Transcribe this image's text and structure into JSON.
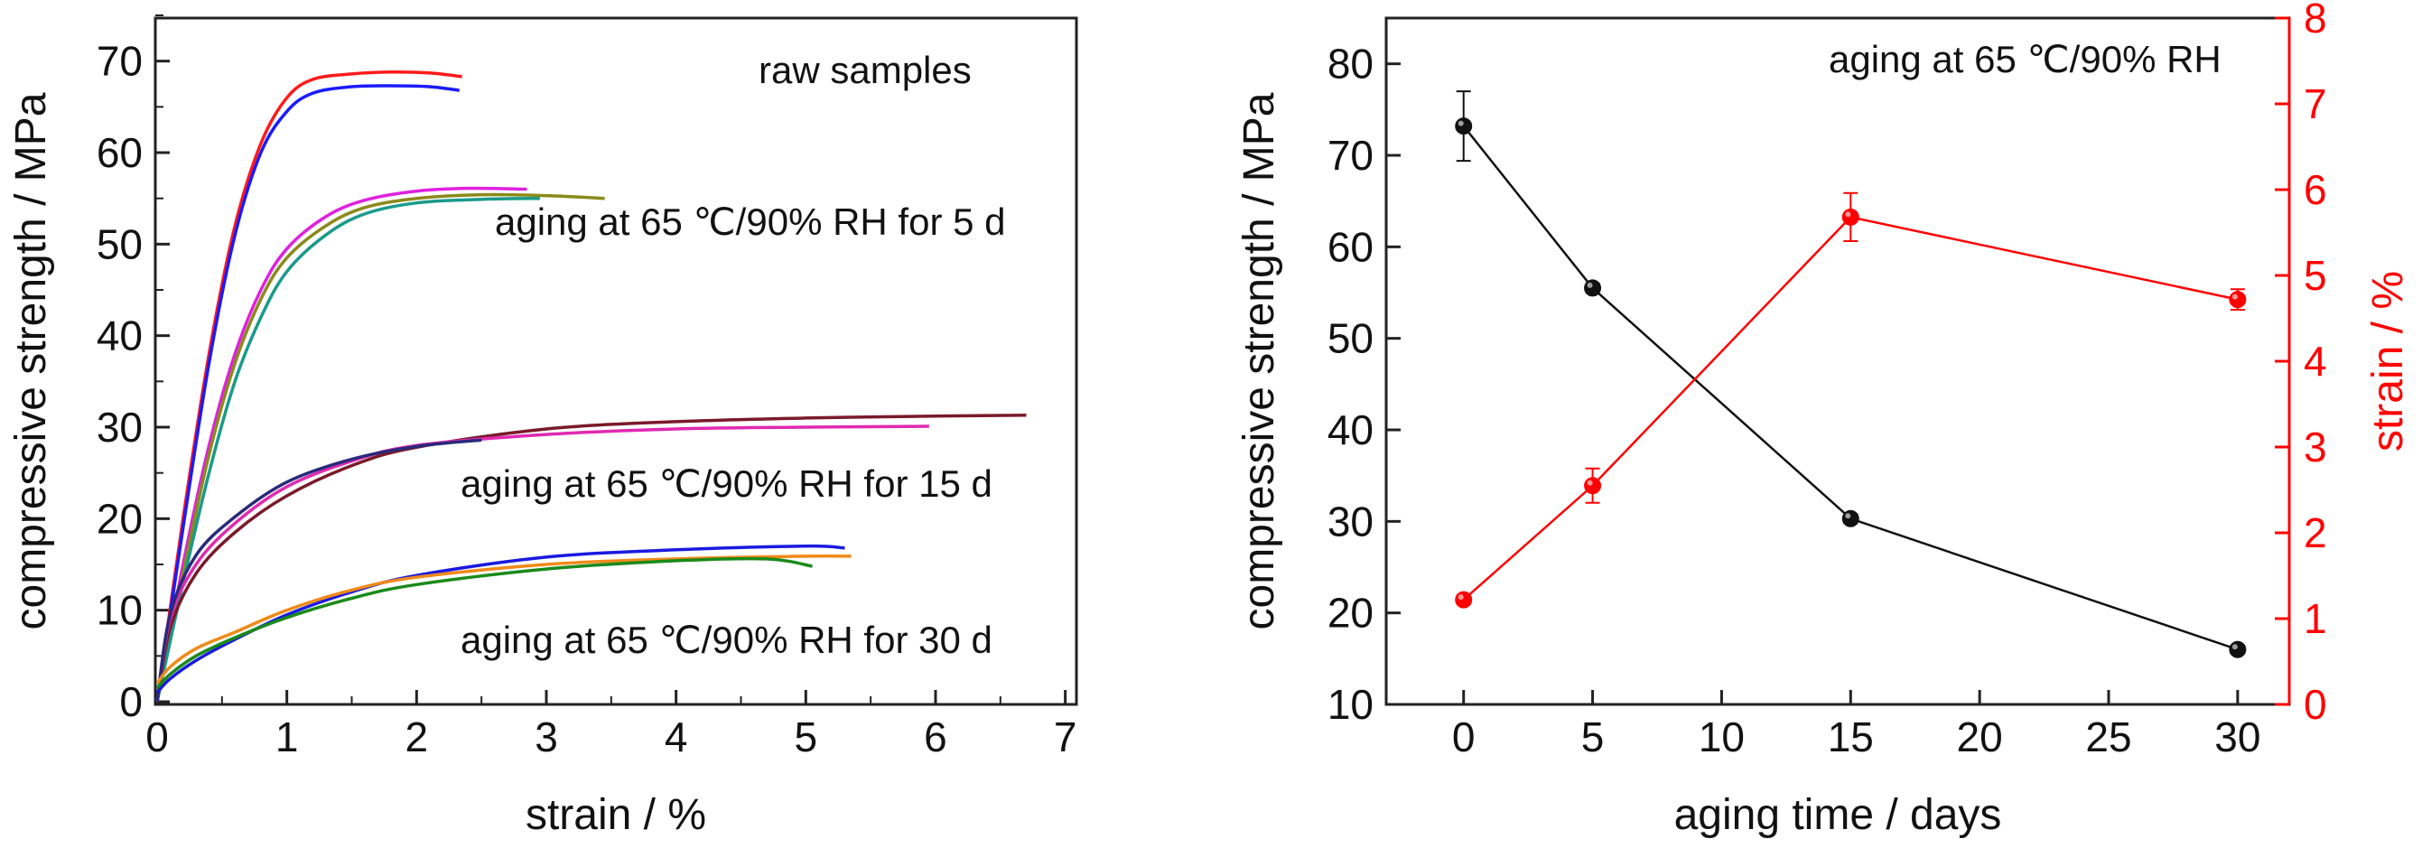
{
  "chart_data": [
    {
      "type": "line",
      "xlabel": "strain / %",
      "ylabel": "compressive strength / MPa",
      "xlim": [
        0,
        7
      ],
      "ylim": [
        0,
        75
      ],
      "xticks": [
        "0",
        "1",
        "2",
        "3",
        "4",
        "5",
        "6",
        "7"
      ],
      "yticks": [
        "0",
        "10",
        "20",
        "30",
        "40",
        "50",
        "60",
        "70"
      ],
      "grid": false,
      "annotations": [
        "raw samples",
        "aging at 65 ℃/90% RH for 5 d",
        "aging at 65 ℃/90% RH for 15 d",
        "aging at 65 ℃/90% RH for 30 d"
      ],
      "series": [
        {
          "group": "raw samples",
          "color": "#ff1a1a",
          "x": [
            0,
            0.2,
            0.4,
            0.6,
            0.8,
            1.0,
            1.2,
            1.5,
            1.8,
            2.1,
            2.35
          ],
          "y": [
            0,
            20,
            38,
            52,
            61,
            66,
            68,
            68.6,
            68.8,
            68.7,
            68.3
          ]
        },
        {
          "group": "raw samples",
          "color": "#1a1aff",
          "x": [
            0,
            0.2,
            0.4,
            0.6,
            0.8,
            1.0,
            1.2,
            1.5,
            1.8,
            2.1,
            2.33
          ],
          "y": [
            0,
            19,
            37,
            51,
            60,
            64.5,
            66.5,
            67.2,
            67.3,
            67.2,
            66.8
          ]
        },
        {
          "group": "5 d",
          "color": "#e020e0",
          "x": [
            0,
            0.2,
            0.4,
            0.6,
            0.8,
            1.0,
            1.3,
            1.6,
            2.0,
            2.4,
            2.85
          ],
          "y": [
            0,
            15,
            28,
            38,
            45,
            49.5,
            53,
            54.8,
            55.8,
            56.1,
            56.0
          ]
        },
        {
          "group": "5 d",
          "color": "#8a8a1a",
          "x": [
            0,
            0.2,
            0.4,
            0.6,
            0.8,
            1.0,
            1.3,
            1.6,
            2.0,
            2.5,
            3.0,
            3.45
          ],
          "y": [
            0,
            14,
            27,
            37,
            44,
            48.5,
            52,
            54,
            55,
            55.4,
            55.3,
            55.0
          ]
        },
        {
          "group": "5 d",
          "color": "#1a9a8a",
          "x": [
            0,
            0.2,
            0.4,
            0.6,
            0.8,
            1.0,
            1.3,
            1.6,
            2.0,
            2.5,
            2.95
          ],
          "y": [
            0,
            13,
            25,
            35,
            42,
            47,
            51,
            53.3,
            54.5,
            54.9,
            55.0
          ]
        },
        {
          "group": "15 d",
          "color": "#7a1a2a",
          "x": [
            0,
            0.1,
            0.3,
            0.6,
            1.0,
            1.5,
            2.0,
            3.0,
            4.0,
            5.0,
            6.0,
            6.7
          ],
          "y": [
            0,
            8,
            14,
            18.5,
            22.5,
            25.8,
            27.8,
            29.8,
            30.6,
            31.0,
            31.2,
            31.3
          ]
        },
        {
          "group": "15 d",
          "color": "#e02ab0",
          "x": [
            0,
            0.1,
            0.3,
            0.6,
            1.0,
            1.5,
            2.0,
            3.0,
            4.0,
            5.0,
            5.95
          ],
          "y": [
            0,
            9,
            15,
            19.5,
            23.5,
            26.3,
            28.0,
            29.2,
            29.8,
            30.0,
            30.1
          ]
        },
        {
          "group": "15 d",
          "color": "#2a2a7a",
          "x": [
            0,
            0.1,
            0.3,
            0.6,
            1.0,
            1.5,
            2.0,
            2.5
          ],
          "y": [
            0,
            9.5,
            16,
            20.2,
            24,
            26.5,
            27.9,
            28.6
          ]
        },
        {
          "group": "30 d",
          "color": "#1a1ae0",
          "x": [
            0,
            0.1,
            0.3,
            0.6,
            1.0,
            1.5,
            2.0,
            3.0,
            4.0,
            5.0,
            5.3
          ],
          "y": [
            1,
            2.5,
            4.5,
            6.8,
            9.5,
            12,
            13.8,
            15.8,
            16.6,
            17.0,
            16.8
          ]
        },
        {
          "group": "30 d",
          "color": "#f08a1a",
          "x": [
            0,
            0.1,
            0.3,
            0.6,
            1.0,
            1.5,
            2.0,
            3.0,
            4.0,
            5.0,
            5.35
          ],
          "y": [
            2,
            3.8,
            5.8,
            7.6,
            10,
            12.2,
            13.6,
            15.0,
            15.6,
            15.9,
            15.9
          ]
        },
        {
          "group": "30 d",
          "color": "#1a8a1a",
          "x": [
            0,
            0.1,
            0.3,
            0.6,
            1.0,
            1.5,
            2.0,
            3.0,
            4.0,
            4.7,
            5.05
          ],
          "y": [
            1.5,
            3,
            5,
            7,
            9.2,
            11.3,
            12.8,
            14.5,
            15.4,
            15.6,
            14.8
          ]
        }
      ]
    },
    {
      "type": "line",
      "annotation": "aging at 65 ℃/90% RH",
      "xlabel": "aging time / days",
      "ylabel": "compressive strength / MPa",
      "y2label": "strain / %",
      "xlim": [
        -3,
        32
      ],
      "ylim": [
        10,
        85
      ],
      "y2lim": [
        0,
        8
      ],
      "xticks": [
        "0",
        "5",
        "10",
        "15",
        "20",
        "25",
        "30"
      ],
      "yticks": [
        "10",
        "20",
        "30",
        "40",
        "50",
        "60",
        "70",
        "80"
      ],
      "y2ticks": [
        "0",
        "1",
        "2",
        "3",
        "4",
        "5",
        "6",
        "7",
        "8"
      ],
      "grid": false,
      "series": [
        {
          "axis": "left",
          "color": "#111111",
          "x": [
            0,
            5,
            15,
            30
          ],
          "y": [
            73.2,
            55.5,
            30.3,
            16.0
          ],
          "err": [
            3.8,
            0.5,
            0.5,
            0.4
          ]
        },
        {
          "axis": "right",
          "color": "#ff0000",
          "x": [
            0,
            5,
            15,
            30
          ],
          "y": [
            1.22,
            2.55,
            5.68,
            4.72
          ],
          "err": [
            0.05,
            0.2,
            0.28,
            0.12
          ]
        }
      ]
    }
  ]
}
